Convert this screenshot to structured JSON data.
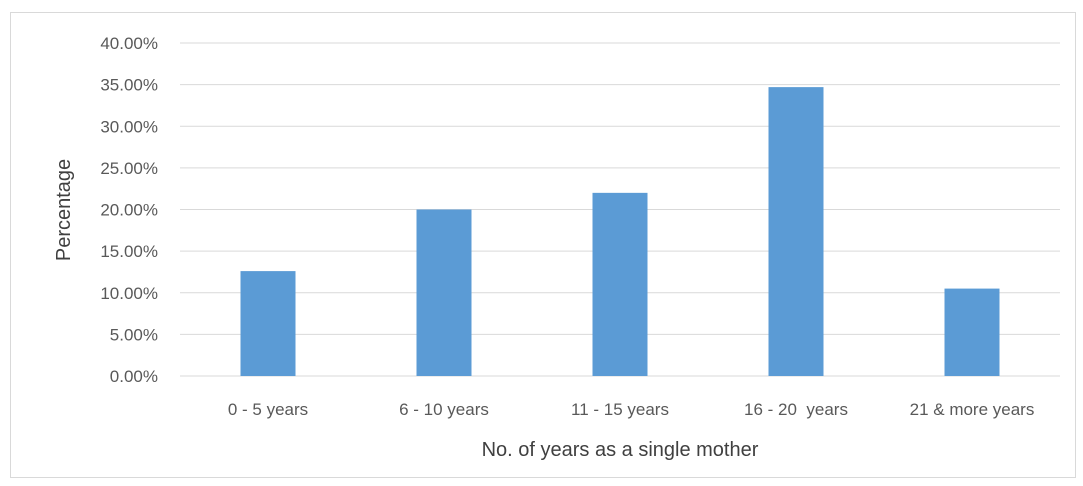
{
  "chart_data": {
    "type": "bar",
    "title": "",
    "xlabel": "No. of years as a single mother",
    "ylabel": "Percentage",
    "categories": [
      "0 - 5 years",
      "6 - 10 years",
      "11 - 15 years",
      "16 - 20  years",
      "21 & more years"
    ],
    "values": [
      12.6,
      20.0,
      22.0,
      34.7,
      10.5
    ],
    "ylim": [
      0,
      40
    ],
    "yticks": [
      0,
      5,
      10,
      15,
      20,
      25,
      30,
      35,
      40
    ],
    "ytick_labels": [
      "0.00%",
      "5.00%",
      "10.00%",
      "15.00%",
      "20.00%",
      "25.00%",
      "30.00%",
      "35.00%",
      "40.00%"
    ],
    "grid": true,
    "legend": "none",
    "bar_color": "#5b9bd5",
    "grid_color": "#d9d9d9"
  }
}
